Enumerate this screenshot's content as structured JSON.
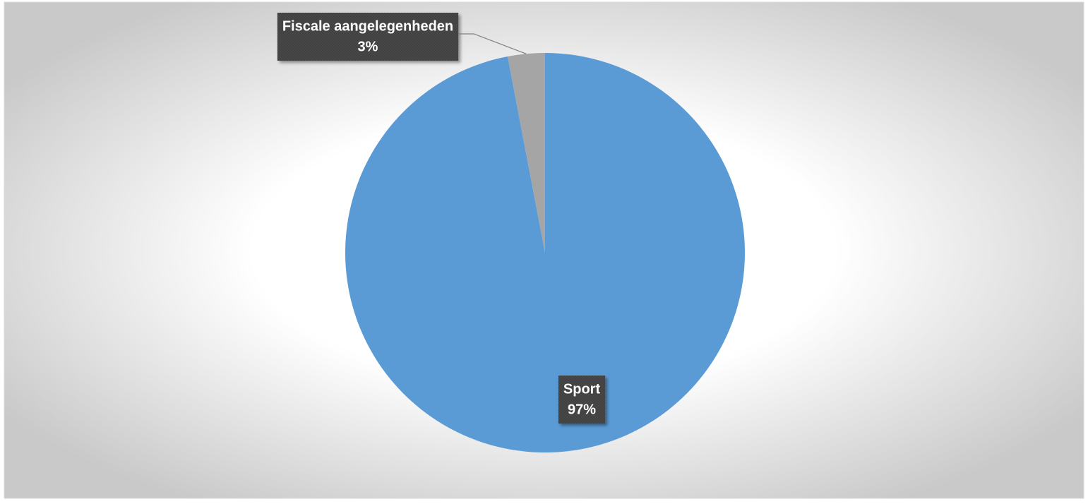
{
  "chart_data": {
    "type": "pie",
    "categories": [
      "Sport",
      "Fiscale aangelegenheden"
    ],
    "values": [
      97,
      3
    ],
    "value_labels": [
      "97%",
      "3%"
    ],
    "colors": [
      "#5b9bd5",
      "#a5a5a5"
    ]
  }
}
